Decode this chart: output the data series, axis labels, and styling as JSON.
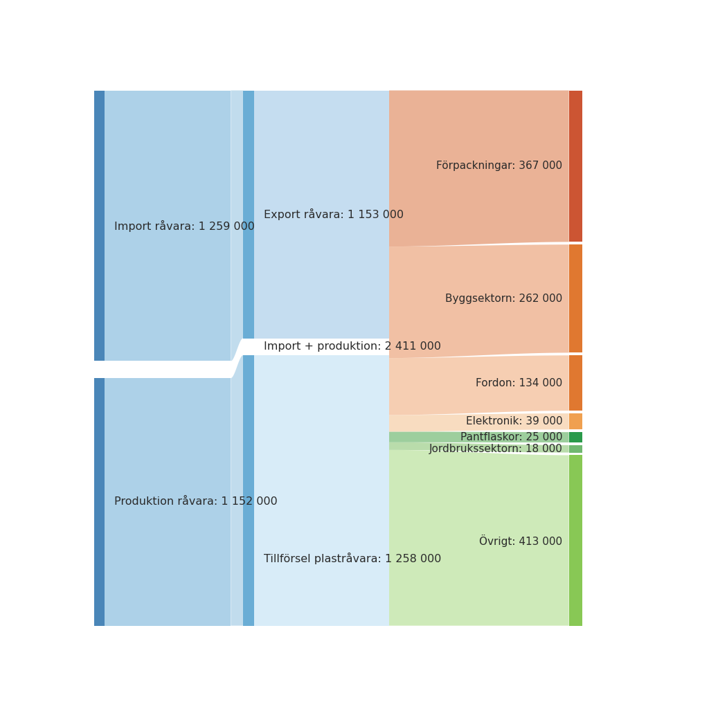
{
  "fig_width": 10.24,
  "fig_height": 10.24,
  "bg_color": "#ffffff",
  "import_raw_label": "Import råvara: 1 259 000",
  "import_raw_val": 1259000,
  "produktion_raw_label": "Produktion råvara: 1 152 000",
  "produktion_raw_val": 1152000,
  "export_raw_label": "Export råvara: 1 153 000",
  "export_raw_val": 1153000,
  "import_prod_label": "Import + produktion: 2 411 000",
  "import_prod_val": 2411000,
  "tillforsel_label": "Tillförsel plastråvara: 1 258 000",
  "tillforsel_val": 1258000,
  "col1_light": "#add1e8",
  "col1_dark": "#4a86b8",
  "col2_export_light": "#c5ddf0",
  "col2_till_light": "#d8ecf8",
  "col2_dark": "#6aadd5",
  "outputs": [
    {
      "label": "Förpackningar: 367 000",
      "value": 367000,
      "flow_color": "#e8a888",
      "bar_color": "#cc5533"
    },
    {
      "label": "Byggsektorn: 262 000",
      "value": 262000,
      "flow_color": "#f0b898",
      "bar_color": "#e07830"
    },
    {
      "label": "Fordon: 134 000",
      "value": 134000,
      "flow_color": "#f5c8a8",
      "bar_color": "#e07830"
    },
    {
      "label": "Elektronik: 39 000",
      "value": 39000,
      "flow_color": "#f8d8b8",
      "bar_color": "#f0a050"
    },
    {
      "label": "Pantflaskor: 25 000",
      "value": 25000,
      "flow_color": "#90c890",
      "bar_color": "#2a9a4a"
    },
    {
      "label": "Jordbrukssektorn: 18 000",
      "value": 18000,
      "flow_color": "#b0d8a0",
      "bar_color": "#70b870"
    },
    {
      "label": "Övrigt: 413 000",
      "value": 413000,
      "flow_color": "#c8e8b0",
      "bar_color": "#88c855"
    }
  ],
  "text_color": "#2a2a2a",
  "font_size": 11.5
}
